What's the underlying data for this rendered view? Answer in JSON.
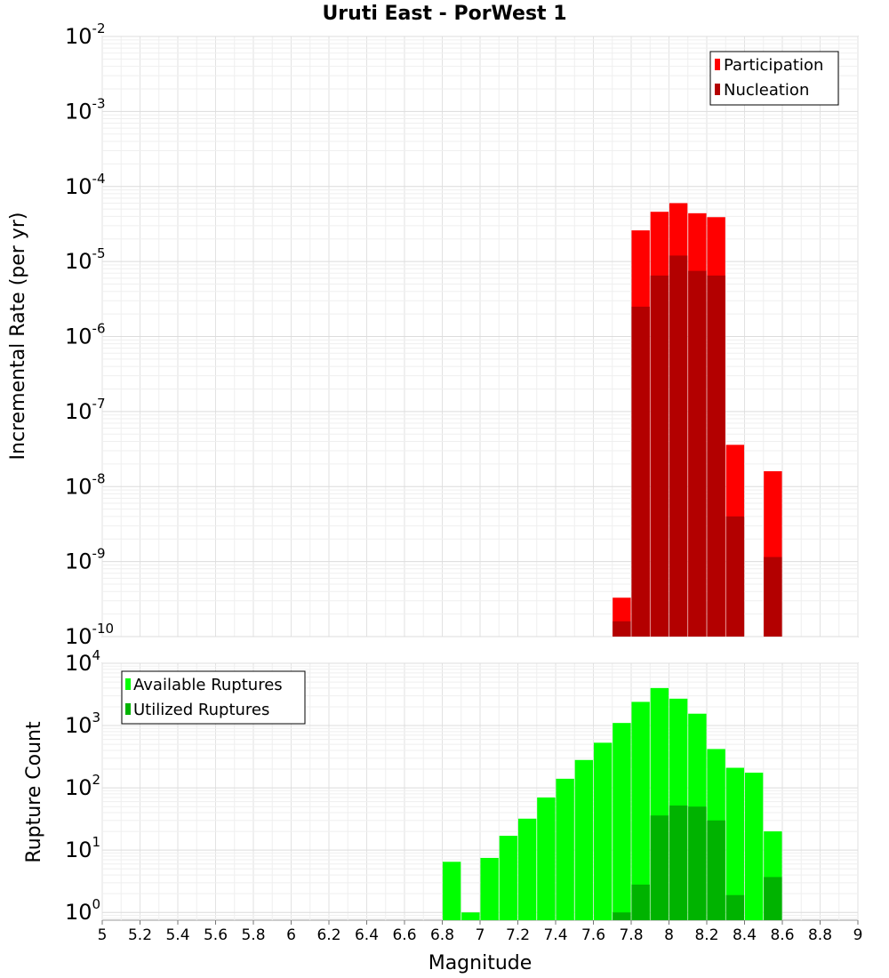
{
  "chart_data": [
    {
      "id": "top",
      "type": "bar",
      "title": "Uruti East - PorWest 1",
      "xlabel": "Magnitude",
      "ylabel": "Incremental Rate (per yr)",
      "xlim": [
        5,
        9
      ],
      "ylim": [
        1e-10,
        0.01
      ],
      "yscale": "log",
      "y_tick_exponents": [
        -10,
        -9,
        -8,
        -7,
        -6,
        -5,
        -4,
        -3,
        -2
      ],
      "grid": true,
      "legend_position": "top-right",
      "series": [
        {
          "name": "Participation",
          "color": "#ff0000",
          "x": [
            7.75,
            7.85,
            7.95,
            8.05,
            8.15,
            8.25,
            8.35,
            8.55
          ],
          "values": [
            3.3e-10,
            2.6e-05,
            4.6e-05,
            6e-05,
            4.4e-05,
            3.9e-05,
            3.6e-08,
            1.6e-08
          ]
        },
        {
          "name": "Nucleation",
          "color": "#b30000",
          "x": [
            7.75,
            7.85,
            7.95,
            8.05,
            8.15,
            8.25,
            8.35,
            8.55
          ],
          "values": [
            1.6e-10,
            2.5e-06,
            6.5e-06,
            1.2e-05,
            7.5e-06,
            6.5e-06,
            4e-09,
            1.15e-09
          ]
        }
      ]
    },
    {
      "id": "bottom",
      "type": "bar",
      "xlabel": "Magnitude",
      "ylabel": "Rupture Count",
      "xlim": [
        5,
        9
      ],
      "ylim": [
        0.75,
        10000
      ],
      "yscale": "log",
      "y_tick_exponents": [
        0,
        1,
        2,
        3,
        4
      ],
      "x_ticks": [
        "5",
        "5.2",
        "5.4",
        "5.6",
        "5.8",
        "6",
        "6.2",
        "6.4",
        "6.6",
        "6.8",
        "7",
        "7.2",
        "7.4",
        "7.6",
        "7.8",
        "8",
        "8.2",
        "8.4",
        "8.6",
        "8.8",
        "9"
      ],
      "grid": true,
      "legend_position": "top-left",
      "series": [
        {
          "name": "Available Ruptures",
          "color": "#00ff00",
          "x": [
            6.85,
            6.95,
            7.05,
            7.15,
            7.25,
            7.35,
            7.45,
            7.55,
            7.65,
            7.75,
            7.85,
            7.95,
            8.05,
            8.15,
            8.25,
            8.35,
            8.45,
            8.55
          ],
          "values": [
            6.5,
            1,
            7.5,
            17,
            32,
            70,
            140,
            280,
            530,
            1100,
            2400,
            4000,
            2700,
            1550,
            420,
            210,
            175,
            20
          ]
        },
        {
          "name": "Utilized Ruptures",
          "color": "#00b300",
          "x": [
            7.75,
            7.85,
            7.95,
            8.05,
            8.15,
            8.25,
            8.35,
            8.55
          ],
          "values": [
            1,
            2.8,
            36,
            52,
            50,
            30,
            1.9,
            3.7
          ]
        }
      ]
    }
  ]
}
